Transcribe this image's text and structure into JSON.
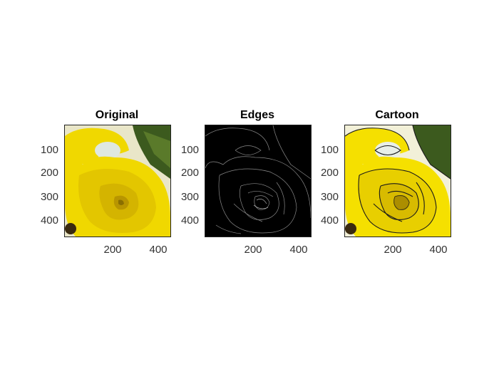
{
  "panels": [
    {
      "title": "Original",
      "style": "original"
    },
    {
      "title": "Edges",
      "style": "edges"
    },
    {
      "title": "Cartoon",
      "style": "cartoon"
    }
  ],
  "axis": {
    "yticks": [
      "100",
      "200",
      "300",
      "400"
    ],
    "xticks": [
      "200",
      "400"
    ]
  },
  "colors": {
    "rose_yellow": "#f0d800",
    "rose_dark": "#c9a800",
    "leaf_green": "#3c5a1e",
    "edges_bg": "#000000"
  }
}
